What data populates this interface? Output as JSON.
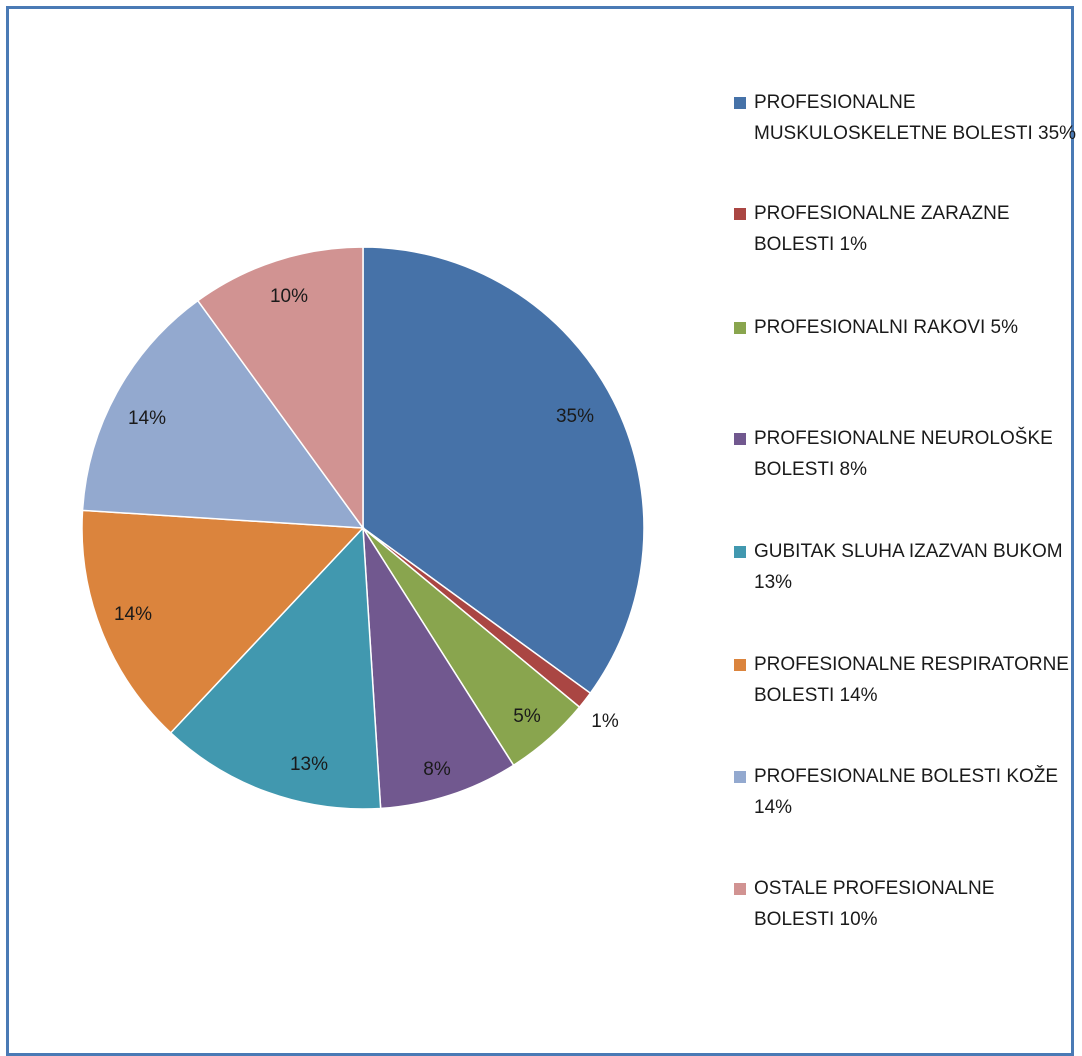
{
  "chart_data": {
    "type": "pie",
    "start_angle_deg": 0,
    "direction": "clockwise",
    "slices": [
      {
        "legend": "PROFESIONALNE MUSKULOSKELETNE BOLESTI 35%",
        "value": 35,
        "label": "35%",
        "color": "#4672a8"
      },
      {
        "legend": "PROFESIONALNE ZARAZNE BOLESTI 1%",
        "value": 1,
        "label": "1%",
        "color": "#aa4643"
      },
      {
        "legend": "PROFESIONALNI RAKOVI 5%",
        "value": 5,
        "label": "5%",
        "color": "#89a54e"
      },
      {
        "legend": "PROFESIONALNE NEUROLOŠKE BOLESTI 8%",
        "value": 8,
        "label": "8%",
        "color": "#71588f"
      },
      {
        "legend": "GUBITAK SLUHA IZAZVAN BUKOM 13%",
        "value": 13,
        "label": "13%",
        "color": "#4198af"
      },
      {
        "legend": "PROFESIONALNE RESPIRATORNE BOLESTI 14%",
        "value": 14,
        "label": "14%",
        "color": "#db843d"
      },
      {
        "legend": "PROFESIONALNE BOLESTI KOŽE 14%",
        "value": 14,
        "label": "14%",
        "color": "#93a9cf"
      },
      {
        "legend": "OSTALE PROFESIONALNE BOLESTI  10%",
        "value": 10,
        "label": "10%",
        "color": "#d19392"
      }
    ]
  }
}
